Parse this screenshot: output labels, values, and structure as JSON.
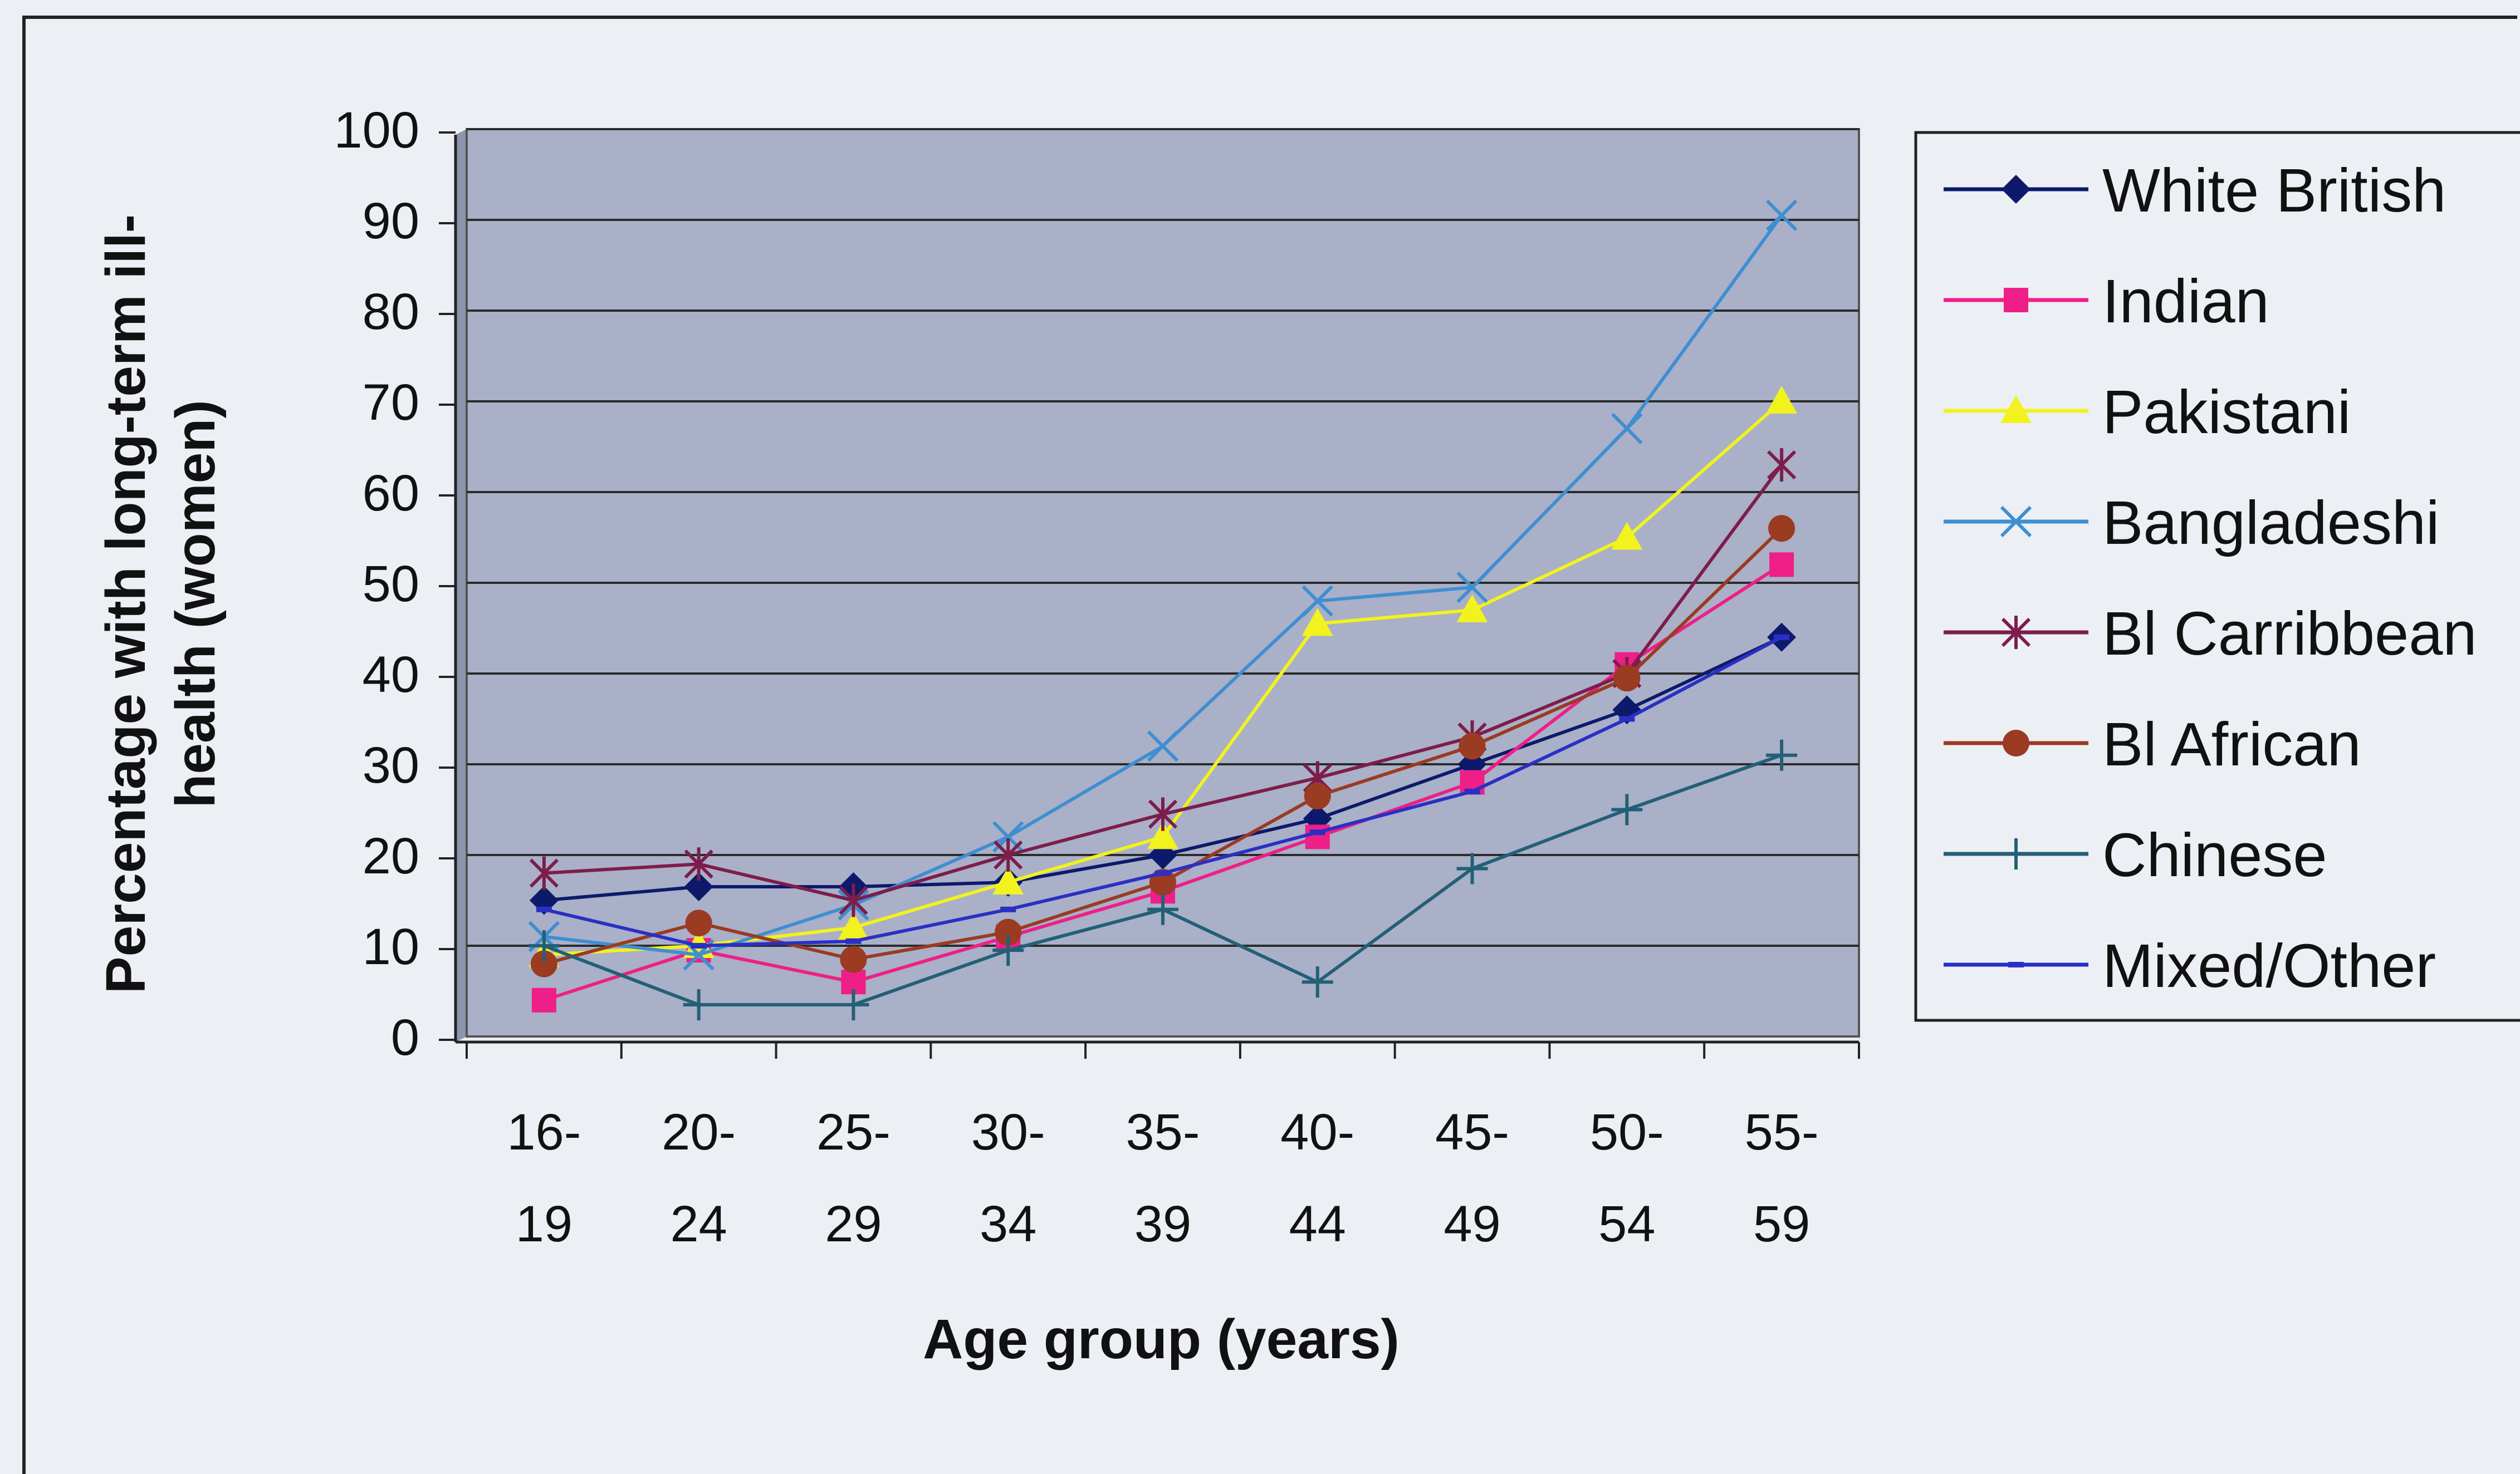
{
  "chart_data": {
    "type": "line",
    "xlabel": "Age group (years)",
    "ylabel_lines": [
      "Percentage with long-term ill-",
      "health (women)"
    ],
    "ylim": [
      0,
      100
    ],
    "yticks": [
      "0",
      "10",
      "20",
      "30",
      "40",
      "50",
      "60",
      "70",
      "80",
      "90",
      "100"
    ],
    "categories": [
      [
        "16-",
        "19"
      ],
      [
        "20-",
        "24"
      ],
      [
        "25-",
        "29"
      ],
      [
        "30-",
        "34"
      ],
      [
        "35-",
        "39"
      ],
      [
        "40-",
        "44"
      ],
      [
        "45-",
        "49"
      ],
      [
        "50-",
        "54"
      ],
      [
        "55-",
        "59"
      ]
    ],
    "grid": true,
    "legend_position": "right",
    "plot_background": "#a9b0c8",
    "series": [
      {
        "name": "White British",
        "color": "#0d1a6b",
        "marker": "diamond",
        "values": [
          15,
          16.5,
          16.5,
          17,
          20,
          24,
          30,
          36,
          44
        ]
      },
      {
        "name": "Indian",
        "color": "#ee1f86",
        "marker": "square",
        "values": [
          4,
          9.5,
          6,
          11,
          16,
          22,
          28,
          41,
          52
        ]
      },
      {
        "name": "Pakistani",
        "color": "#f2f21f",
        "marker": "triangle",
        "values": [
          9,
          10,
          12,
          17,
          22,
          45.5,
          47,
          55,
          70
        ]
      },
      {
        "name": "Bangladeshi",
        "color": "#3f8ed1",
        "marker": "x",
        "values": [
          11,
          9,
          14.5,
          22,
          32,
          48,
          49.5,
          67,
          90.5
        ]
      },
      {
        "name": "Bl Carribbean",
        "color": "#7d1d4b",
        "marker": "asterisk",
        "values": [
          18,
          19,
          15,
          20,
          24.5,
          28.5,
          33,
          40,
          63
        ]
      },
      {
        "name": "Bl African",
        "color": "#9a3b22",
        "marker": "circle",
        "values": [
          8,
          12.5,
          8.5,
          11.5,
          17,
          26.5,
          32,
          39.5,
          56
        ]
      },
      {
        "name": "Chinese",
        "color": "#236077",
        "marker": "plus",
        "values": [
          10,
          3.5,
          3.5,
          9.5,
          14,
          6,
          18.5,
          25,
          31
        ]
      },
      {
        "name": "Mixed/Other",
        "color": "#2a2fc4",
        "marker": "dash",
        "values": [
          14,
          10,
          10.5,
          14,
          18,
          22.5,
          27,
          35,
          44
        ]
      }
    ]
  }
}
